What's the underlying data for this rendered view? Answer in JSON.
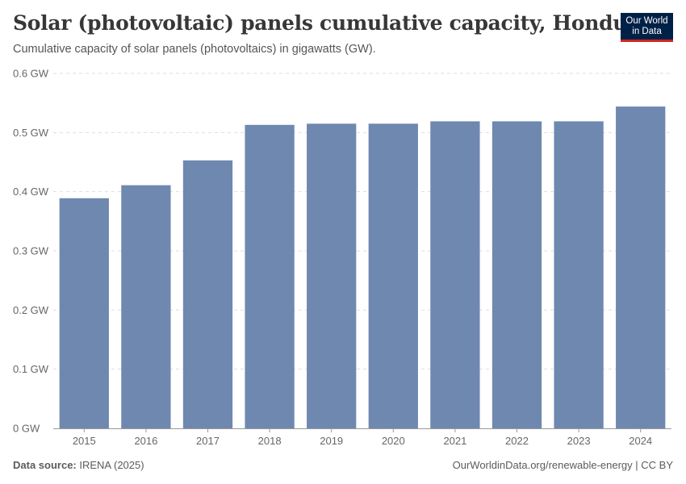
{
  "header": {
    "title": "Solar (photovoltaic) panels cumulative capacity, Honduras",
    "subtitle": "Cumulative capacity of solar panels (photovoltaics) in gigawatts (GW).",
    "logo_line1": "Our World",
    "logo_line2": "in Data"
  },
  "footer": {
    "source_label": "Data source:",
    "source_value": "IRENA (2025)",
    "url_license": "OurWorldinData.org/renewable-energy | CC BY"
  },
  "colors": {
    "bar": "#6f88b0",
    "grid": "#dddddd",
    "axis": "#999999",
    "logo_bg": "#002147",
    "logo_accent": "#ce261e"
  },
  "chart_data": {
    "type": "bar",
    "title": "Solar (photovoltaic) panels cumulative capacity, Honduras",
    "xlabel": "",
    "ylabel": "",
    "unit": "GW",
    "categories": [
      "2015",
      "2016",
      "2017",
      "2018",
      "2019",
      "2020",
      "2021",
      "2022",
      "2023",
      "2024"
    ],
    "values": [
      0.389,
      0.411,
      0.453,
      0.513,
      0.515,
      0.515,
      0.519,
      0.519,
      0.519,
      0.544
    ],
    "ylim": [
      0,
      0.6
    ],
    "yticks": [
      0,
      0.1,
      0.2,
      0.3,
      0.4,
      0.5,
      0.6
    ],
    "ytick_labels": [
      "0 GW",
      "0.1 GW",
      "0.2 GW",
      "0.3 GW",
      "0.4 GW",
      "0.5 GW",
      "0.6 GW"
    ],
    "grid": true,
    "legend": false
  }
}
